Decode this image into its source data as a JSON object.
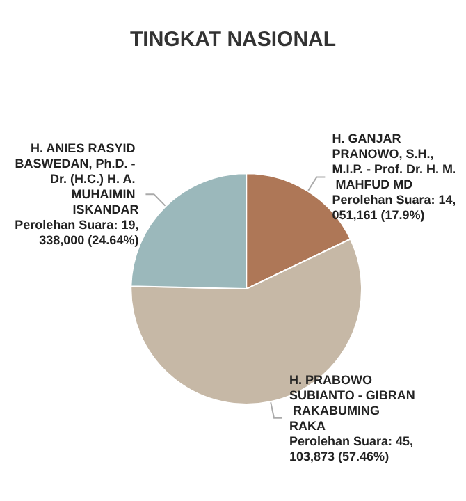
{
  "chart_data": {
    "type": "pie",
    "title": "TINGKAT NASIONAL",
    "categories": [
      "H. GANJAR PRANOWO, S.H., M.I.P. - Prof. Dr. H. M. MAHFUD MD",
      "H. PRABOWO SUBIANTO - GIBRAN RAKABUMING RAKA",
      "H. ANIES RASYID BASWEDAN, Ph.D. - Dr. (H.C.) H. A. MUHAIMIN ISKANDAR"
    ],
    "values": [
      14051161,
      45103873,
      19338000
    ],
    "colors": [
      "#ae7757",
      "#c6b8a6",
      "#9bb8bb"
    ],
    "value_labels": [
      "Perolehan Suara: 14,051,161 (17.9%)",
      "Perolehan Suara: 45,103,873 (57.46%)",
      "Perolehan Suara: 19,338,000 (24.64%)"
    ],
    "legend": false
  }
}
